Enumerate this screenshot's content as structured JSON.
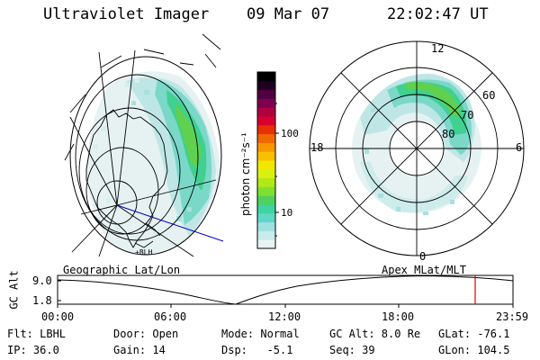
{
  "header": {
    "title": "Ultraviolet Imager",
    "date": "09 Mar 07",
    "time": "22:02:47 UT"
  },
  "colorbar": {
    "unit_label": "photon cm⁻²s⁻¹",
    "ticks": [
      "100",
      "10"
    ],
    "colors": [
      "#e8f4f4",
      "#c8ecec",
      "#9fe0e0",
      "#5fd8c8",
      "#3fd4a0",
      "#50d060",
      "#80e030",
      "#b0e818",
      "#d8f010",
      "#f0e800",
      "#f8c000",
      "#f89800",
      "#f06800",
      "#e83000",
      "#d80030",
      "#b00040",
      "#800050",
      "#500040",
      "#200020",
      "#000000"
    ]
  },
  "left_map": {
    "title": "Geographic Lat/Lon",
    "footer_label": "+BLH"
  },
  "right_map": {
    "title": "Apex MLat/MLT",
    "mlt_labels": {
      "top": "12",
      "left": "18",
      "right": "6",
      "bottom": "0"
    },
    "lat_labels": [
      "60",
      "70",
      "80"
    ]
  },
  "timeline": {
    "y_axis_label": "GC Alt",
    "y_ticks": [
      "9.0",
      "1.8"
    ],
    "x_ticks": [
      "00:00",
      "06:00",
      "12:00",
      "18:00",
      "23:59"
    ],
    "current_time_marker": "22:02:47",
    "marker_color": "#e00000"
  },
  "info": {
    "row1": [
      {
        "key": "filter",
        "text": "Flt: LBHL"
      },
      {
        "key": "door",
        "text": "Door: Open"
      },
      {
        "key": "mode",
        "text": "Mode: Normal"
      },
      {
        "key": "gc_alt",
        "text": "GC Alt: 8.0 Re"
      },
      {
        "key": "glat",
        "text": "GLat: -76.1"
      }
    ],
    "row2": [
      {
        "key": "ip",
        "text": "IP: 36.0"
      },
      {
        "key": "gain",
        "text": "Gain: 14"
      },
      {
        "key": "dsp",
        "text": "Dsp:   -5.1"
      },
      {
        "key": "seq",
        "text": "Seq: 39"
      },
      {
        "key": "glon",
        "text": "GLon: 104.5"
      }
    ]
  }
}
